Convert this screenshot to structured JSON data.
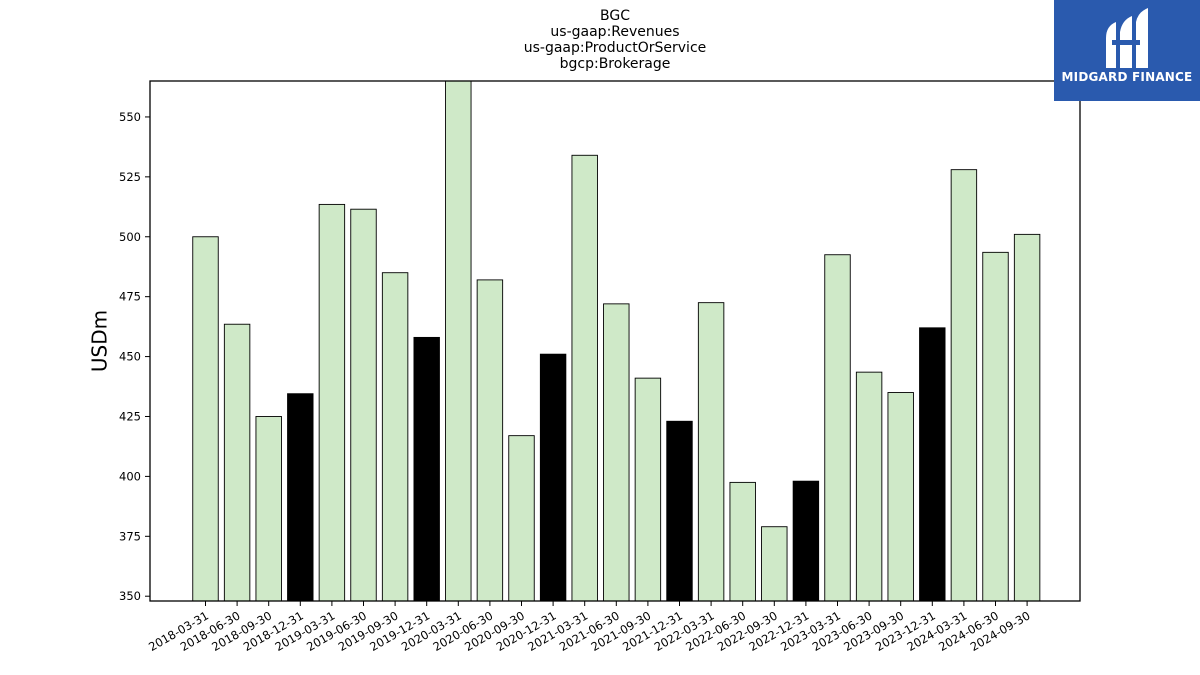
{
  "chart_data": {
    "type": "bar",
    "title_lines": [
      "BGC",
      "us-gaap:Revenues",
      "us-gaap:ProductOrService",
      "bgcp:Brokerage"
    ],
    "xlabel": "",
    "ylabel": "USDm",
    "ylim": [
      348,
      565
    ],
    "yticks": [
      350,
      375,
      400,
      425,
      450,
      475,
      500,
      525,
      550
    ],
    "grid": false,
    "categories": [
      "2018-03-31",
      "2018-06-30",
      "2018-09-30",
      "2018-12-31",
      "2019-03-31",
      "2019-06-30",
      "2019-09-30",
      "2019-12-31",
      "2020-03-31",
      "2020-06-30",
      "2020-09-30",
      "2020-12-31",
      "2021-03-31",
      "2021-06-30",
      "2021-09-30",
      "2021-12-31",
      "2022-03-31",
      "2022-06-30",
      "2022-09-30",
      "2022-12-31",
      "2023-03-31",
      "2023-06-30",
      "2023-09-30",
      "2023-12-31",
      "2024-03-31",
      "2024-06-30",
      "2024-09-30"
    ],
    "values": [
      500,
      463.5,
      425,
      434.5,
      513.5,
      511.5,
      485,
      458,
      565,
      482,
      417,
      451,
      534,
      472,
      441,
      423,
      472.5,
      397.5,
      379,
      398,
      492.5,
      443.5,
      435,
      462,
      528,
      493.5,
      501
    ],
    "highlight": [
      false,
      false,
      false,
      true,
      false,
      false,
      false,
      true,
      false,
      false,
      false,
      true,
      false,
      false,
      false,
      true,
      false,
      false,
      false,
      true,
      false,
      false,
      false,
      true,
      false,
      false,
      false
    ],
    "colors": {
      "normal": "#cfe9c8",
      "highlight": "#000000",
      "edge": "#000000"
    }
  },
  "logo": {
    "text": "MIDGARD FINANCE",
    "background": "#2a5aae"
  }
}
